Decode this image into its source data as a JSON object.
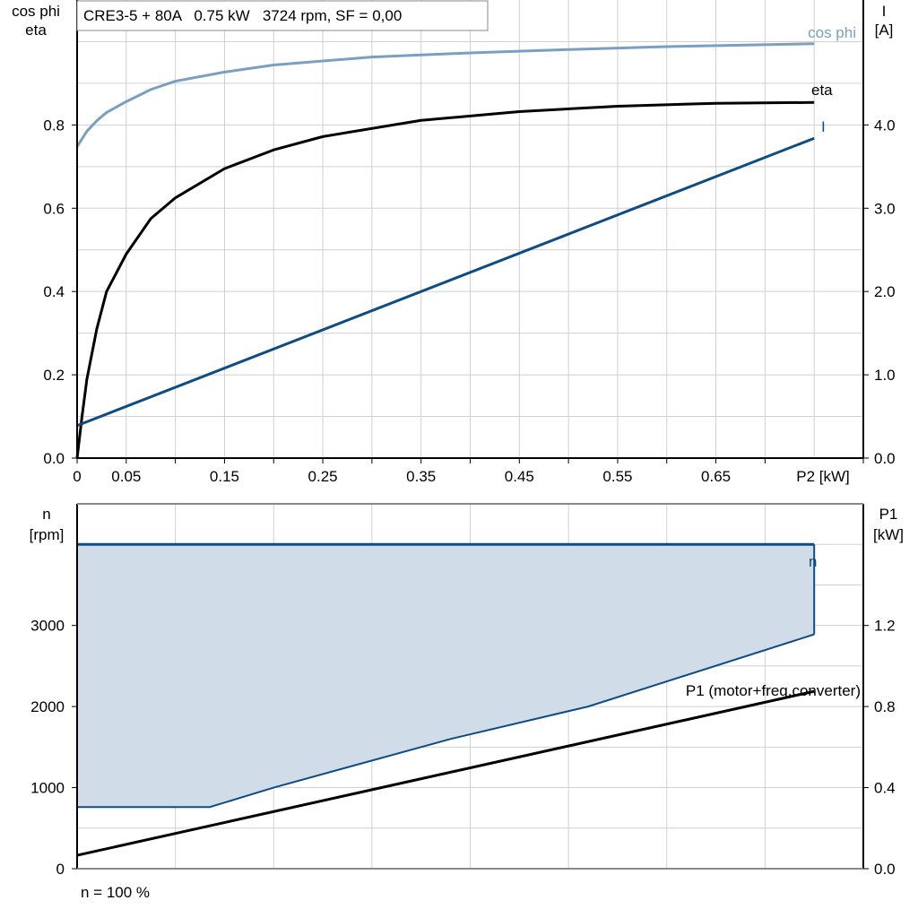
{
  "chart_data": [
    {
      "type": "line",
      "title": "CRE3-5 + 80A   0.75 kW   3724 rpm, SF = 0,00",
      "xlabel": "P2 [kW]",
      "ylabel_left": [
        "cos phi",
        "eta"
      ],
      "ylabel_right": [
        "I",
        "[A]"
      ],
      "xlim": [
        0,
        0.8
      ],
      "ylim_left": [
        0,
        1.1
      ],
      "ylim_right": [
        0,
        5.5
      ],
      "xticks": [
        "0",
        "0.05",
        "0.15",
        "0.25",
        "0.35",
        "0.45",
        "0.55",
        "0.65"
      ],
      "xtick_values": [
        0,
        0.05,
        0.15,
        0.25,
        0.35,
        0.45,
        0.55,
        0.65
      ],
      "yticks_left": [
        "0.0",
        "0.2",
        "0.4",
        "0.6",
        "0.8"
      ],
      "yticks_right": [
        "0.0",
        "1.0",
        "2.0",
        "3.0",
        "4.0"
      ],
      "grid": true,
      "series": [
        {
          "name": "cos phi",
          "axis": "left",
          "color": "#7a9fc2",
          "x": [
            0,
            0.01,
            0.02,
            0.03,
            0.05,
            0.075,
            0.1,
            0.15,
            0.2,
            0.3,
            0.4,
            0.5,
            0.6,
            0.75
          ],
          "y": [
            0.748,
            0.785,
            0.81,
            0.83,
            0.856,
            0.885,
            0.905,
            0.927,
            0.944,
            0.963,
            0.973,
            0.981,
            0.988,
            0.995
          ]
        },
        {
          "name": "eta",
          "axis": "left",
          "color": "#000000",
          "x": [
            0,
            0.005,
            0.01,
            0.02,
            0.03,
            0.05,
            0.075,
            0.1,
            0.15,
            0.2,
            0.25,
            0.35,
            0.45,
            0.55,
            0.65,
            0.75
          ],
          "y": [
            0,
            0.1,
            0.19,
            0.31,
            0.4,
            0.49,
            0.575,
            0.625,
            0.695,
            0.74,
            0.772,
            0.811,
            0.832,
            0.845,
            0.852,
            0.854
          ]
        },
        {
          "name": "I",
          "axis": "right",
          "color": "#0f4c81",
          "x": [
            0,
            0.75
          ],
          "y": [
            0.39,
            3.84
          ]
        }
      ]
    },
    {
      "type": "area",
      "footer": "n = 100 %",
      "ylabel_left": [
        "n",
        "[rpm]"
      ],
      "ylabel_right": [
        "P1",
        "[kW]"
      ],
      "xlim": [
        0,
        0.8
      ],
      "ylim_left": [
        0,
        4500
      ],
      "ylim_right": [
        0,
        1.8
      ],
      "yticks_left": [
        "0",
        "1000",
        "2000",
        "3000"
      ],
      "yticks_right": [
        "0.0",
        "0.4",
        "0.8",
        "1.2"
      ],
      "grid": true,
      "series": [
        {
          "name": "n",
          "axis": "left",
          "color": "#0f4c81",
          "fill": "#d0dce8",
          "upper_x": [
            0,
            0.75
          ],
          "upper_y": [
            4000,
            4000
          ],
          "lower_x": [
            0,
            0.135,
            0.2,
            0.38,
            0.52,
            0.75
          ],
          "lower_y": [
            760,
            760,
            1000,
            1600,
            2000,
            2890
          ]
        },
        {
          "name": "P1 (motor+freq.converter)",
          "axis": "right",
          "color": "#000000",
          "x": [
            0,
            0.75
          ],
          "y": [
            0.066,
            0.875
          ]
        }
      ]
    }
  ]
}
